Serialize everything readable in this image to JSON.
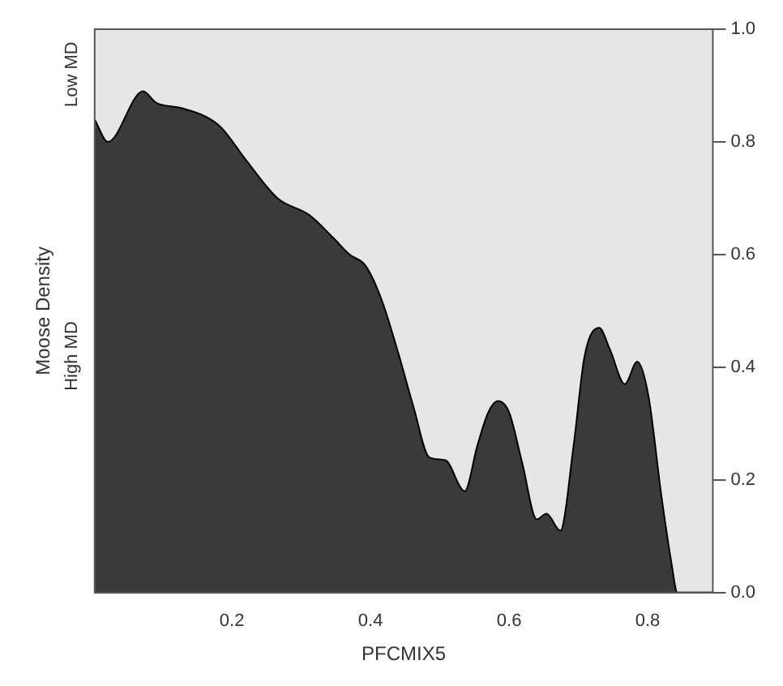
{
  "chart_data": {
    "type": "area",
    "xlabel": "PFCMIX5",
    "ylabel": "Moose Density",
    "stacked": true,
    "marker": "none",
    "grid": false,
    "legend": false,
    "x": [
      0.002,
      0.021,
      0.072,
      0.09,
      0.127,
      0.162,
      0.185,
      0.219,
      0.266,
      0.312,
      0.346,
      0.37,
      0.393,
      0.416,
      0.439,
      0.462,
      0.485,
      0.508,
      0.536,
      0.554,
      0.57,
      0.584,
      0.6,
      0.619,
      0.64,
      0.654,
      0.674,
      0.693,
      0.709,
      0.73,
      0.746,
      0.767,
      0.785,
      0.801,
      0.82,
      0.834,
      0.843,
      0.894
    ],
    "series": [
      {
        "name": "High MD",
        "color": "#3a3a3a",
        "values": [
          0.84,
          0.8,
          0.89,
          0.87,
          0.86,
          0.845,
          0.825,
          0.77,
          0.7,
          0.67,
          0.63,
          0.6,
          0.58,
          0.52,
          0.43,
          0.33,
          0.24,
          0.235,
          0.18,
          0.26,
          0.32,
          0.34,
          0.32,
          0.23,
          0.13,
          0.14,
          0.11,
          0.26,
          0.42,
          0.47,
          0.43,
          0.37,
          0.41,
          0.35,
          0.17,
          0.055,
          0,
          0
        ]
      },
      {
        "name": "Low MD",
        "color": "#e6e6e6",
        "values": [
          0.16,
          0.2,
          0.11,
          0.13,
          0.14,
          0.155,
          0.175,
          0.23,
          0.3,
          0.33,
          0.37,
          0.4,
          0.42,
          0.48,
          0.57,
          0.67,
          0.76,
          0.765,
          0.82,
          0.74,
          0.68,
          0.66,
          0.68,
          0.77,
          0.87,
          0.86,
          0.89,
          0.74,
          0.58,
          0.53,
          0.57,
          0.63,
          0.59,
          0.65,
          0.83,
          0.945,
          1,
          1
        ]
      }
    ],
    "xlim": [
      0.002,
      0.894
    ],
    "xticks": [
      0.2,
      0.4,
      0.6,
      0.8
    ],
    "ylim": [
      0,
      1
    ],
    "yticks": [
      {
        "value": 0,
        "label": "0.0"
      },
      {
        "value": 0.2,
        "label": "0.2"
      },
      {
        "value": 0.4,
        "label": "0.4"
      },
      {
        "value": 0.6,
        "label": "0.6"
      },
      {
        "value": 0.8,
        "label": "0.8"
      },
      {
        "value": 1,
        "label": "1.0"
      }
    ]
  }
}
